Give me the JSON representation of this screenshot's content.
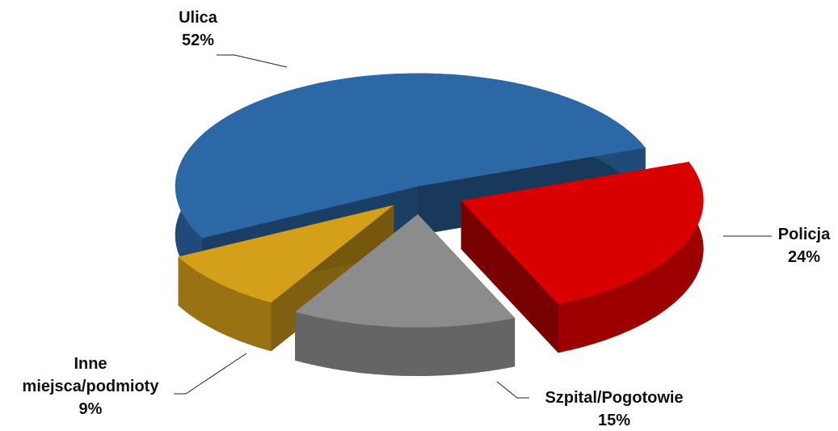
{
  "chart_data": {
    "type": "pie",
    "categories": [
      "Ulica",
      "Policja",
      "Szpital/Pogotowie",
      "Inne miejsca/podmioty"
    ],
    "values": [
      52,
      24,
      15,
      9
    ],
    "value_labels": [
      "52%",
      "24%",
      "15%",
      "9%"
    ],
    "colors": [
      "#2d68a6",
      "#d80000",
      "#8c8c8c",
      "#d4a01a"
    ]
  }
}
